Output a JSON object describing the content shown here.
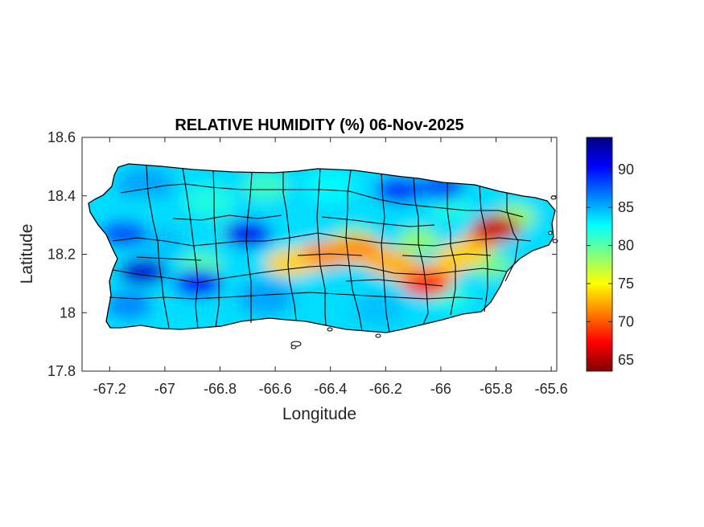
{
  "chart_data": {
    "type": "heatmap",
    "title": "RELATIVE HUMIDITY (%) 06-Nov-2025",
    "xlabel": "Longitude",
    "ylabel": "Latitude",
    "xlim": [
      -67.3,
      -65.58
    ],
    "ylim": [
      17.8,
      18.6
    ],
    "x_ticks": [
      -67.2,
      -67,
      -66.8,
      -66.6,
      -66.4,
      -66.2,
      -66,
      -65.8,
      -65.6
    ],
    "x_tick_labels": [
      "-67.2",
      "-67",
      "-66.8",
      "-66.6",
      "-66.4",
      "-66.2",
      "-66",
      "-65.8",
      "-65.6"
    ],
    "y_ticks": [
      17.8,
      18,
      18.2,
      18.4,
      18.6
    ],
    "y_tick_labels": [
      "17.8",
      "18",
      "18.2",
      "18.4",
      "18.6"
    ],
    "colorbar": {
      "colormap": "jet",
      "limits": [
        63.5,
        94.2
      ],
      "ticks": [
        65,
        70,
        75,
        80,
        85,
        90
      ],
      "tick_labels": [
        "65",
        "70",
        "75",
        "80",
        "85",
        "90"
      ]
    },
    "field_summary": {
      "background_level": 74,
      "humid_band": [
        {
          "lon": -66.55,
          "lat": 18.17,
          "value": 84
        },
        {
          "lon": -66.42,
          "lat": 18.2,
          "value": 86
        },
        {
          "lon": -66.3,
          "lat": 18.22,
          "value": 86
        },
        {
          "lon": -66.18,
          "lat": 18.17,
          "value": 85
        },
        {
          "lon": -66.05,
          "lat": 18.1,
          "value": 89
        },
        {
          "lon": -65.92,
          "lat": 18.2,
          "value": 84
        },
        {
          "lon": -65.8,
          "lat": 18.29,
          "value": 92
        }
      ],
      "dry_spots": [
        {
          "lon": -67.08,
          "lat": 18.14,
          "value": 66
        },
        {
          "lon": -66.88,
          "lat": 18.1,
          "value": 68
        },
        {
          "lon": -66.7,
          "lat": 18.27,
          "value": 67
        },
        {
          "lon": -66.15,
          "lat": 18.42,
          "value": 69
        },
        {
          "lon": -66.0,
          "lat": 18.43,
          "value": 70
        },
        {
          "lon": -67.15,
          "lat": 18.27,
          "value": 70
        }
      ]
    },
    "grid": false
  }
}
